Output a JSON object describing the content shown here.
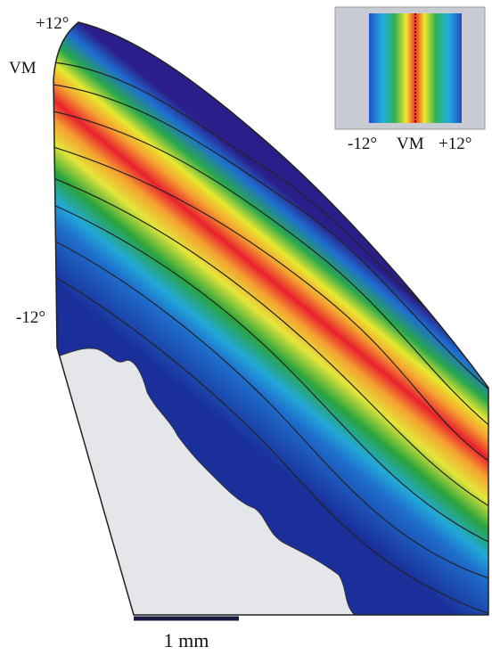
{
  "map_labels": {
    "top": "+12°",
    "vm": "VM",
    "bottom": "-12°"
  },
  "legend": {
    "left": "-12°",
    "center": "VM",
    "right": "+12°"
  },
  "scale_bar": {
    "label": "1 mm"
  }
}
